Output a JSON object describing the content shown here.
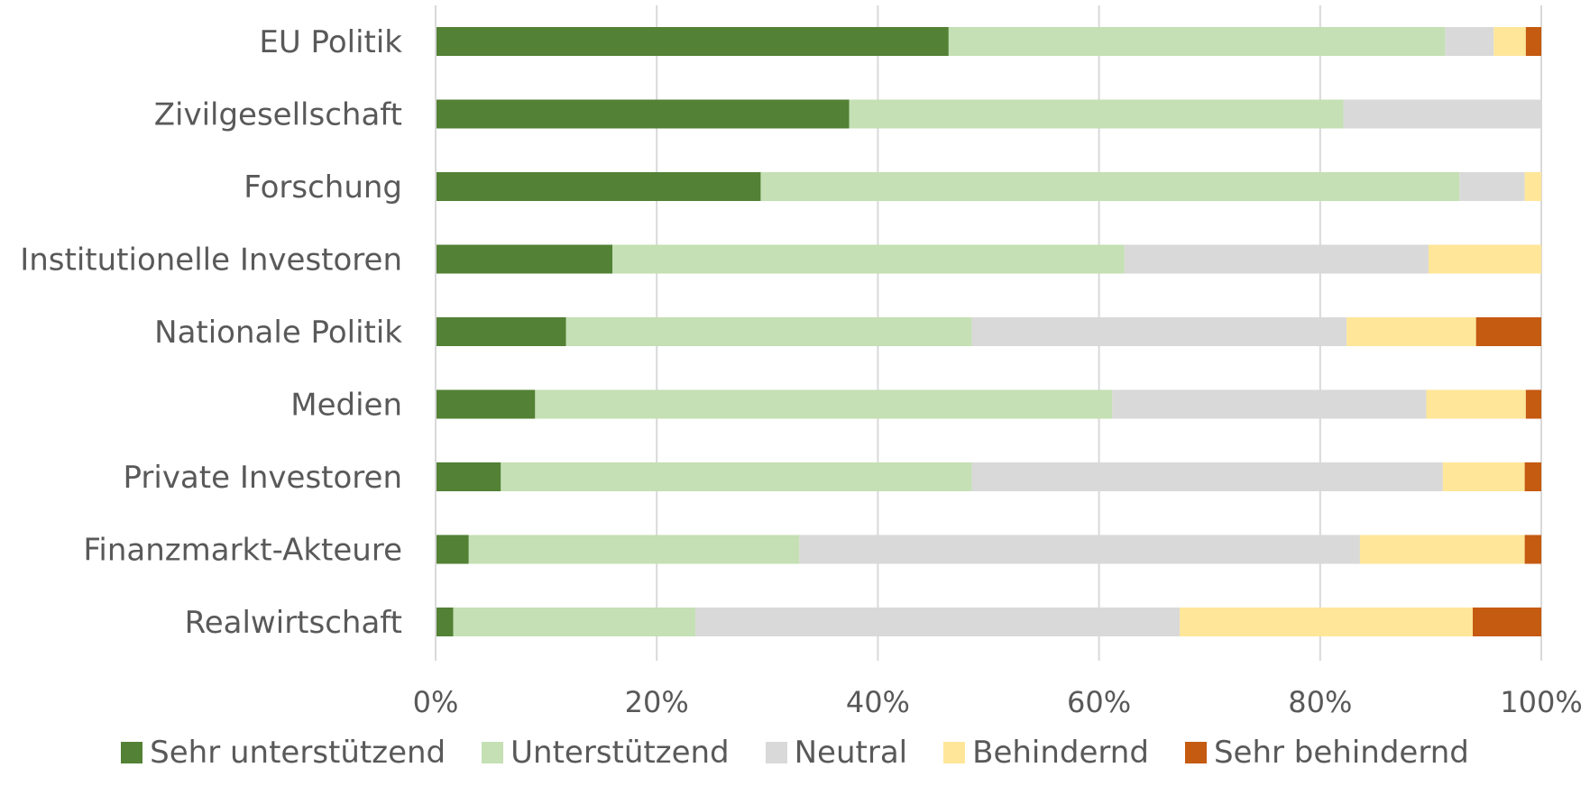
{
  "chart_data": {
    "type": "bar",
    "orientation": "horizontal",
    "stacked": "percent",
    "categories": [
      "EU Politik",
      "Zivilgesellschaft",
      "Forschung",
      "Institutionelle Investoren",
      "Nationale Politik",
      "Medien",
      "Private Investoren",
      "Finanzmarkt-Akteure",
      "Realwirtschaft"
    ],
    "series": [
      {
        "name": "Sehr unterstützend",
        "color": "#538135",
        "values": [
          46.4,
          37.4,
          29.4,
          16.0,
          11.8,
          9.0,
          5.9,
          3.0,
          1.6
        ]
      },
      {
        "name": "Unterstützend",
        "color": "#c5e0b4",
        "values": [
          44.9,
          44.7,
          63.2,
          46.3,
          36.7,
          52.2,
          42.6,
          29.9,
          21.9
        ]
      },
      {
        "name": "Neutral",
        "color": "#d9d9d9",
        "values": [
          4.4,
          17.9,
          5.9,
          27.5,
          33.9,
          28.4,
          42.6,
          50.7,
          43.8
        ]
      },
      {
        "name": "Behindernd",
        "color": "#ffe699",
        "values": [
          2.9,
          0.0,
          1.5,
          10.2,
          11.7,
          9.0,
          7.4,
          14.9,
          26.5
        ]
      },
      {
        "name": "Sehr behindernd",
        "color": "#c55a11",
        "values": [
          1.4,
          0.0,
          0.0,
          0.0,
          5.9,
          1.4,
          1.5,
          1.5,
          6.2
        ]
      }
    ],
    "x_ticks": [
      "0%",
      "20%",
      "40%",
      "60%",
      "80%",
      "100%"
    ],
    "xlim": [
      0,
      100
    ],
    "grid": true,
    "legend_position": "bottom"
  }
}
